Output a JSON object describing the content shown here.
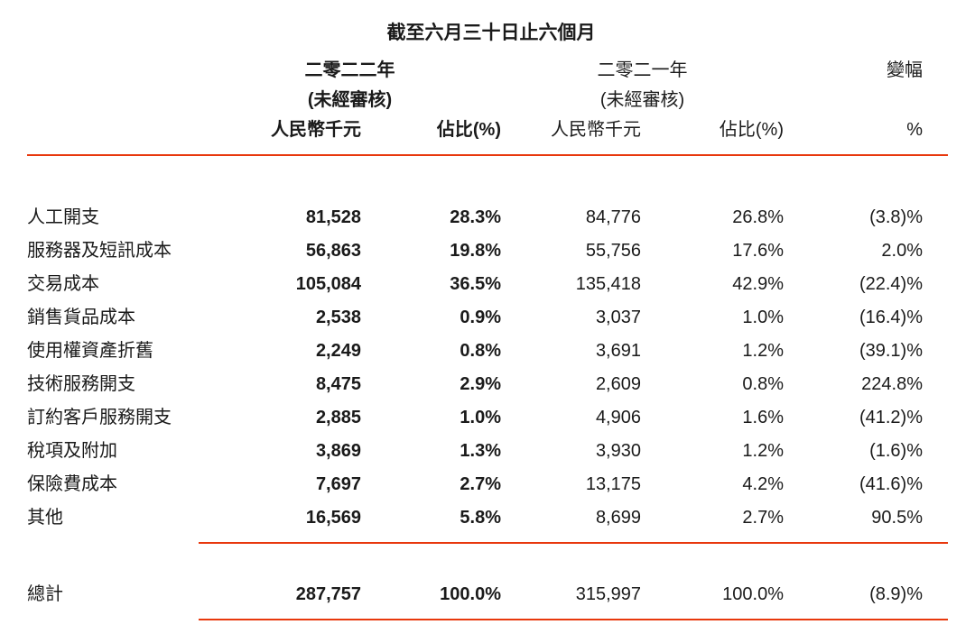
{
  "colors": {
    "rule": "#e8380d",
    "text": "#1a1a1a"
  },
  "header": {
    "title": "截至六月三十日止六個月",
    "y2022": {
      "year": "二零二二年",
      "note": "(未經審核)",
      "amount_header": "人民幣千元",
      "share_header": "佔比(%)"
    },
    "y2021": {
      "year": "二零二一年",
      "note": "(未經審核)",
      "amount_header": "人民幣千元",
      "share_header": "佔比(%)"
    },
    "change": {
      "label": "變幅",
      "unit_header": "%"
    }
  },
  "rows": [
    {
      "label": "人工開支",
      "amt_2022": "81,528",
      "pct_2022": "28.3%",
      "amt_2021": "84,776",
      "pct_2021": "26.8%",
      "change": "(3.8)%"
    },
    {
      "label": "服務器及短訊成本",
      "amt_2022": "56,863",
      "pct_2022": "19.8%",
      "amt_2021": "55,756",
      "pct_2021": "17.6%",
      "change": "2.0%"
    },
    {
      "label": "交易成本",
      "amt_2022": "105,084",
      "pct_2022": "36.5%",
      "amt_2021": "135,418",
      "pct_2021": "42.9%",
      "change": "(22.4)%"
    },
    {
      "label": "銷售貨品成本",
      "amt_2022": "2,538",
      "pct_2022": "0.9%",
      "amt_2021": "3,037",
      "pct_2021": "1.0%",
      "change": "(16.4)%"
    },
    {
      "label": "使用權資產折舊",
      "amt_2022": "2,249",
      "pct_2022": "0.8%",
      "amt_2021": "3,691",
      "pct_2021": "1.2%",
      "change": "(39.1)%"
    },
    {
      "label": "技術服務開支",
      "amt_2022": "8,475",
      "pct_2022": "2.9%",
      "amt_2021": "2,609",
      "pct_2021": "0.8%",
      "change": "224.8%"
    },
    {
      "label": "訂約客戶服務開支",
      "amt_2022": "2,885",
      "pct_2022": "1.0%",
      "amt_2021": "4,906",
      "pct_2021": "1.6%",
      "change": "(41.2)%"
    },
    {
      "label": "稅項及附加",
      "amt_2022": "3,869",
      "pct_2022": "1.3%",
      "amt_2021": "3,930",
      "pct_2021": "1.2%",
      "change": "(1.6)%"
    },
    {
      "label": "保險費成本",
      "amt_2022": "7,697",
      "pct_2022": "2.7%",
      "amt_2021": "13,175",
      "pct_2021": "4.2%",
      "change": "(41.6)%"
    },
    {
      "label": "其他",
      "amt_2022": "16,569",
      "pct_2022": "5.8%",
      "amt_2021": "8,699",
      "pct_2021": "2.7%",
      "change": "90.5%"
    }
  ],
  "total": {
    "label": "總計",
    "amt_2022": "287,757",
    "pct_2022": "100.0%",
    "amt_2021": "315,997",
    "pct_2021": "100.0%",
    "change": "(8.9)%"
  }
}
